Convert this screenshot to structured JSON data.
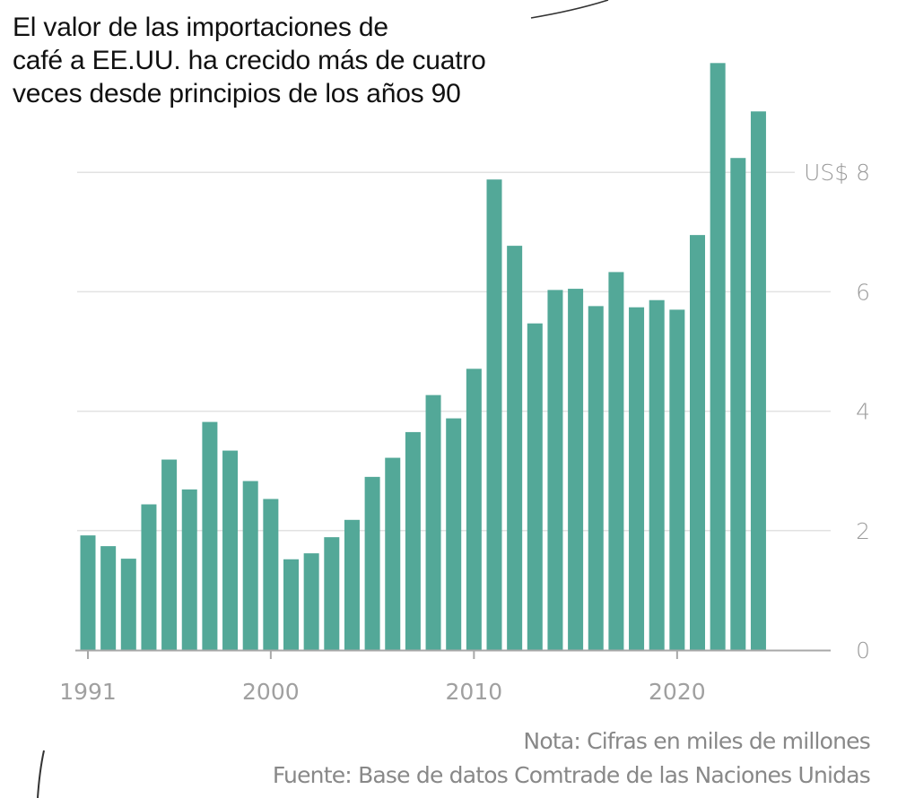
{
  "title_lines": [
    "El valor de las importaciones de",
    "café a EE.UU. ha crecido más de cuatro",
    "veces desde principios de los años 90"
  ],
  "footer": {
    "note": "Nota: Cifras en miles de millones",
    "source": "Fuente: Base de datos Comtrade de las Naciones Unidas"
  },
  "colors": {
    "bar": "#53a898",
    "grid": "#e2e2e2",
    "axis": "#a8a8a8",
    "tick_text": "#9a9a9a",
    "title": "#111111"
  },
  "chart_data": {
    "type": "bar",
    "title": "El valor de las importaciones de café a EE.UU. ha crecido más de cuatro veces desde principios de los años 90",
    "xlabel": "",
    "ylabel": "US$ (miles de millones)",
    "ylim": [
      0,
      10
    ],
    "yticks": [
      0,
      2,
      4,
      6,
      8
    ],
    "ytick_labels": [
      "0",
      "2",
      "4",
      "6",
      "US$ 8"
    ],
    "xticks": [
      1991,
      2000,
      2010,
      2020
    ],
    "xtick_labels": [
      "1991",
      "2000",
      "2010",
      "2020"
    ],
    "grid": true,
    "y_axis_position": "right",
    "categories": [
      1991,
      1992,
      1993,
      1994,
      1995,
      1996,
      1997,
      1998,
      1999,
      2000,
      2001,
      2002,
      2003,
      2004,
      2005,
      2006,
      2007,
      2008,
      2009,
      2010,
      2011,
      2012,
      2013,
      2014,
      2015,
      2016,
      2017,
      2018,
      2019,
      2020,
      2021,
      2022,
      2023,
      2024
    ],
    "values": [
      1.92,
      1.74,
      1.53,
      2.44,
      3.19,
      2.69,
      3.82,
      3.34,
      2.83,
      2.53,
      1.52,
      1.62,
      1.89,
      2.18,
      2.9,
      3.22,
      3.65,
      4.27,
      3.88,
      4.71,
      7.88,
      6.77,
      5.47,
      6.03,
      6.05,
      5.76,
      6.33,
      5.74,
      5.86,
      5.7,
      6.95,
      9.83,
      8.24,
      9.02
    ]
  }
}
